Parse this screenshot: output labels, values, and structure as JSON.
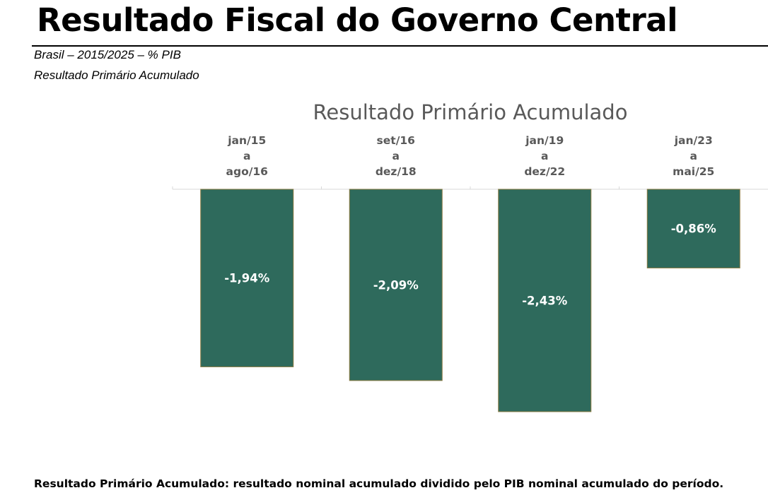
{
  "page": {
    "title": "Resultado Fiscal do Governo Central",
    "subtitle_1": "Brasil – 2015/2025 – % PIB",
    "subtitle_2": "Resultado Primário Acumulado",
    "footnote": "Resultado Primário Acumulado: resultado nominal acumulado dividido pelo PIB nominal acumulado do período."
  },
  "colors": {
    "bar": "#2e6a5c",
    "bar_border": "#8a7a40",
    "bar_label": "#ffffff",
    "category_text": "#595959",
    "gridline": "#d9d9d9"
  },
  "chart_data": {
    "type": "bar",
    "title": "Resultado Primário Acumulado",
    "categories": [
      [
        "jan/15",
        "a",
        "ago/16"
      ],
      [
        "set/16",
        "a",
        "dez/18"
      ],
      [
        "jan/19",
        "a",
        "dez/22"
      ],
      [
        "jan/23",
        "a",
        "mai/25"
      ]
    ],
    "values": [
      -1.94,
      -2.09,
      -2.43,
      -0.86
    ],
    "data_labels": [
      "-1,94%",
      "-2,09%",
      "-2,43%",
      "-0,86%"
    ],
    "xlabel": "",
    "ylabel": "",
    "ylim": [
      -3.0,
      0
    ],
    "grid": false,
    "category_axis_position": "top"
  }
}
